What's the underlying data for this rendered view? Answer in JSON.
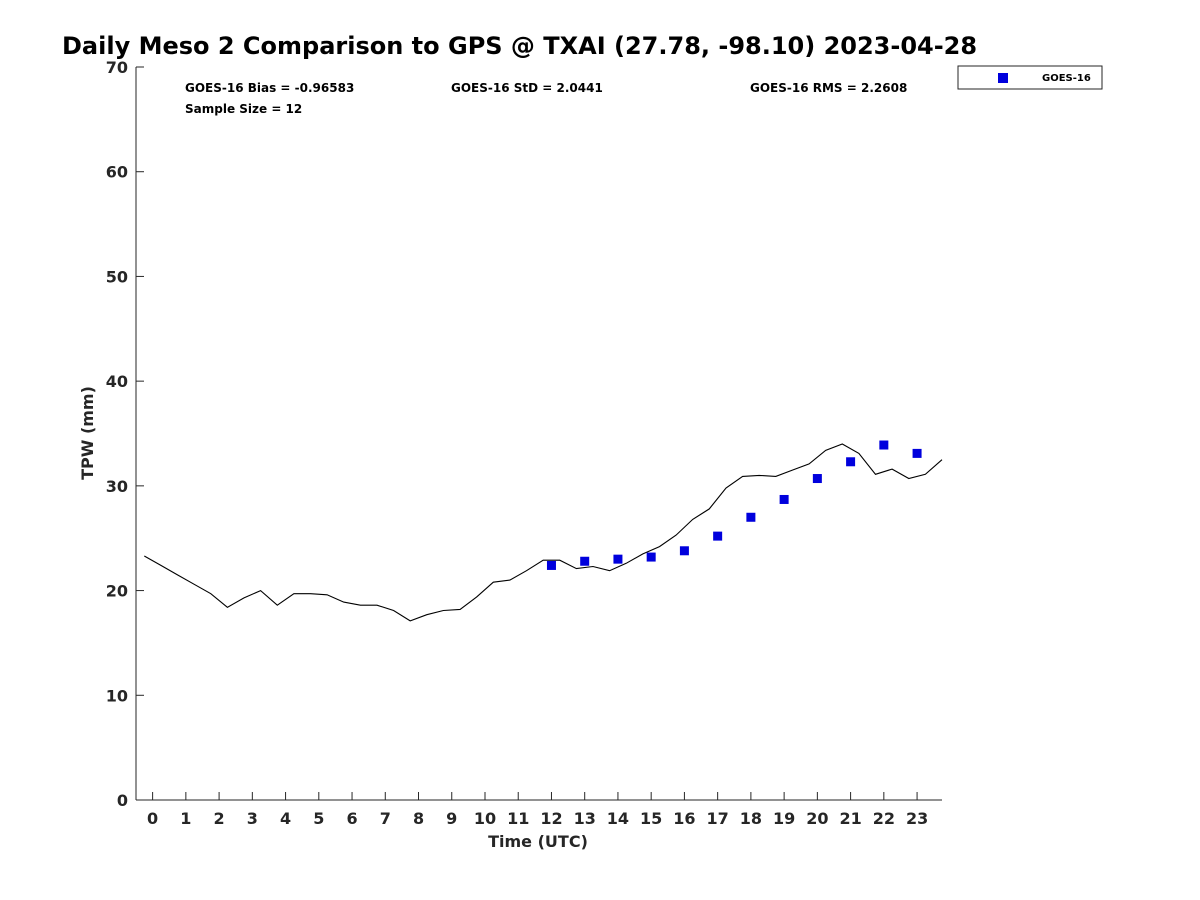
{
  "chart_data": {
    "type": "scatter",
    "title": "Daily Meso 2 Comparison to GPS @ TXAI (27.78, -98.10) 2023-04-28",
    "xlabel": "Time (UTC)",
    "ylabel": "TPW (mm)",
    "xlim": [
      -0.5,
      23.75
    ],
    "ylim": [
      0,
      70
    ],
    "x_ticks": [
      0,
      1,
      2,
      3,
      4,
      5,
      6,
      7,
      8,
      9,
      10,
      11,
      12,
      13,
      14,
      15,
      16,
      17,
      18,
      19,
      20,
      21,
      22,
      23
    ],
    "y_ticks": [
      0,
      10,
      20,
      30,
      40,
      50,
      60,
      70
    ],
    "grid": false,
    "legend_position": "top-right outside",
    "stats": {
      "bias": "GOES-16 Bias = -0.96583",
      "std": "GOES-16 StD = 2.0441",
      "rms": "GOES-16 RMS = 2.2608",
      "sample_size": "Sample Size = 12"
    },
    "series": [
      {
        "name": "",
        "kind": "line",
        "color": "#000000",
        "x": [
          -0.25,
          0.25,
          0.75,
          1.25,
          1.75,
          2.25,
          2.75,
          3.25,
          3.75,
          4.25,
          4.75,
          5.25,
          5.75,
          6.25,
          6.75,
          7.25,
          7.75,
          8.25,
          8.75,
          9.25,
          9.75,
          10.25,
          10.75,
          11.25,
          11.75,
          12.25,
          12.75,
          13.25,
          13.75,
          14.25,
          14.75,
          15.25,
          15.75,
          16.25,
          16.75,
          17.25,
          17.75,
          18.25,
          18.75,
          19.25,
          19.75,
          20.25,
          20.75,
          21.25,
          21.75,
          22.25,
          22.75,
          23.25,
          23.75
        ],
        "values": [
          23.3,
          22.4,
          21.5,
          20.6,
          19.7,
          18.4,
          19.3,
          20.0,
          18.6,
          19.7,
          19.7,
          19.6,
          18.9,
          18.6,
          18.6,
          18.1,
          17.1,
          17.7,
          18.1,
          18.2,
          19.4,
          20.8,
          21.0,
          21.9,
          22.9,
          22.9,
          22.1,
          22.3,
          21.9,
          22.6,
          23.5,
          24.2,
          25.3,
          26.8,
          27.8,
          29.8,
          30.9,
          31.0,
          30.9,
          31.5,
          32.1,
          33.4,
          34.0,
          33.1,
          31.1,
          31.6,
          30.7,
          31.1,
          32.5
        ]
      },
      {
        "name": "GOES-16",
        "kind": "scatter",
        "marker": "square",
        "color": "#0000dd",
        "x": [
          12,
          13,
          14,
          15,
          16,
          17,
          18,
          19,
          20,
          21,
          22,
          23
        ],
        "values": [
          22.4,
          22.8,
          23.0,
          23.2,
          23.8,
          25.2,
          27.0,
          28.7,
          30.7,
          32.3,
          33.9,
          33.1
        ]
      }
    ]
  }
}
